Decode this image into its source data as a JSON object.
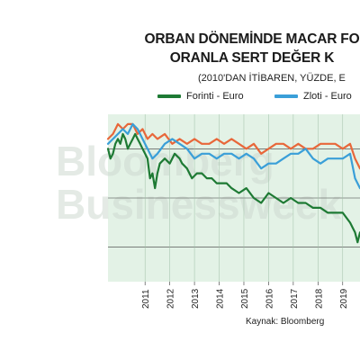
{
  "chart_data": {
    "type": "line",
    "title": "ORBAN DÖNEMİNDE MACAR FO",
    "title_line2": "ORANLA SERT DEĞER K",
    "subtitle": "(2010'DAN İTİBAREN, YÜZDE, E",
    "source": "Kaynak: Bloomberg",
    "watermark": [
      "Bloomberg",
      "Businessweek"
    ],
    "x_ticks": [
      "2011",
      "2012",
      "2013",
      "2014",
      "2015",
      "2016",
      "2017",
      "2018",
      "2019"
    ],
    "x_range": [
      2010.0,
      2020.2
    ],
    "y_range": [
      -27,
      7
    ],
    "grid": true,
    "legend_position": "top",
    "series": [
      {
        "name": "Forinti - Euro",
        "color": "#1e7a34",
        "x": [
          2010.0,
          2010.1,
          2010.2,
          2010.3,
          2010.4,
          2010.5,
          2010.6,
          2010.7,
          2010.8,
          2010.9,
          2011.0,
          2011.1,
          2011.2,
          2011.3,
          2011.4,
          2011.5,
          2011.6,
          2011.7,
          2011.8,
          2011.9,
          2012.0,
          2012.1,
          2012.3,
          2012.5,
          2012.7,
          2012.9,
          2013.0,
          2013.2,
          2013.4,
          2013.6,
          2013.8,
          2014.0,
          2014.2,
          2014.4,
          2014.6,
          2014.8,
          2015.0,
          2015.3,
          2015.6,
          2015.9,
          2016.2,
          2016.5,
          2016.8,
          2017.1,
          2017.4,
          2017.7,
          2018.0,
          2018.3,
          2018.6,
          2018.9,
          2019.2,
          2019.5,
          2019.8,
          2020.0,
          2020.1,
          2020.2
        ],
        "y": [
          0,
          -2,
          -1,
          1,
          2,
          1,
          3,
          2,
          0,
          1,
          2,
          3,
          2,
          1,
          0,
          -1,
          -2,
          -6,
          -5,
          -8,
          -5,
          -3,
          -2,
          -3,
          -1,
          -2,
          -3,
          -4,
          -6,
          -5,
          -5,
          -6,
          -6,
          -7,
          -7,
          -7,
          -8,
          -9,
          -8,
          -10,
          -11,
          -9,
          -10,
          -11,
          -10,
          -11,
          -11,
          -12,
          -12,
          -13,
          -13,
          -13,
          -15,
          -17,
          -19,
          -17
        ]
      },
      {
        "name": "Zloti - Euro",
        "color": "#3a9fd8",
        "x": [
          2010.0,
          2010.2,
          2010.4,
          2010.6,
          2010.8,
          2011.0,
          2011.2,
          2011.4,
          2011.6,
          2011.8,
          2012.0,
          2012.3,
          2012.6,
          2012.9,
          2013.2,
          2013.5,
          2013.8,
          2014.1,
          2014.4,
          2014.7,
          2015.0,
          2015.3,
          2015.6,
          2015.9,
          2016.2,
          2016.5,
          2016.8,
          2017.1,
          2017.4,
          2017.7,
          2018.0,
          2018.3,
          2018.6,
          2018.9,
          2019.2,
          2019.5,
          2019.8,
          2020.0,
          2020.2
        ],
        "y": [
          1,
          2,
          3,
          4,
          3,
          5,
          4,
          2,
          0,
          -2,
          -1,
          1,
          2,
          1,
          0,
          -2,
          -1,
          -1,
          -2,
          -1,
          -1,
          -2,
          -1,
          -2,
          -4,
          -3,
          -3,
          -2,
          -1,
          -1,
          0,
          -2,
          -3,
          -2,
          -2,
          -2,
          -1,
          -6,
          -8
        ]
      },
      {
        "name": "",
        "color": "#e8673a",
        "x": [
          2010.0,
          2010.2,
          2010.4,
          2010.6,
          2010.8,
          2011.0,
          2011.2,
          2011.4,
          2011.6,
          2011.8,
          2012.0,
          2012.3,
          2012.6,
          2012.9,
          2013.2,
          2013.5,
          2013.8,
          2014.1,
          2014.4,
          2014.7,
          2015.0,
          2015.3,
          2015.6,
          2015.9,
          2016.2,
          2016.5,
          2016.8,
          2017.1,
          2017.4,
          2017.7,
          2018.0,
          2018.3,
          2018.6,
          2018.9,
          2019.2,
          2019.5,
          2019.8,
          2020.0,
          2020.2
        ],
        "y": [
          2,
          3,
          5,
          4,
          5,
          5,
          3,
          4,
          2,
          3,
          2,
          3,
          1,
          2,
          1,
          2,
          1,
          1,
          2,
          1,
          2,
          1,
          0,
          1,
          -1,
          0,
          1,
          1,
          0,
          1,
          0,
          0,
          1,
          1,
          1,
          0,
          1,
          -2,
          -4
        ]
      }
    ]
  }
}
